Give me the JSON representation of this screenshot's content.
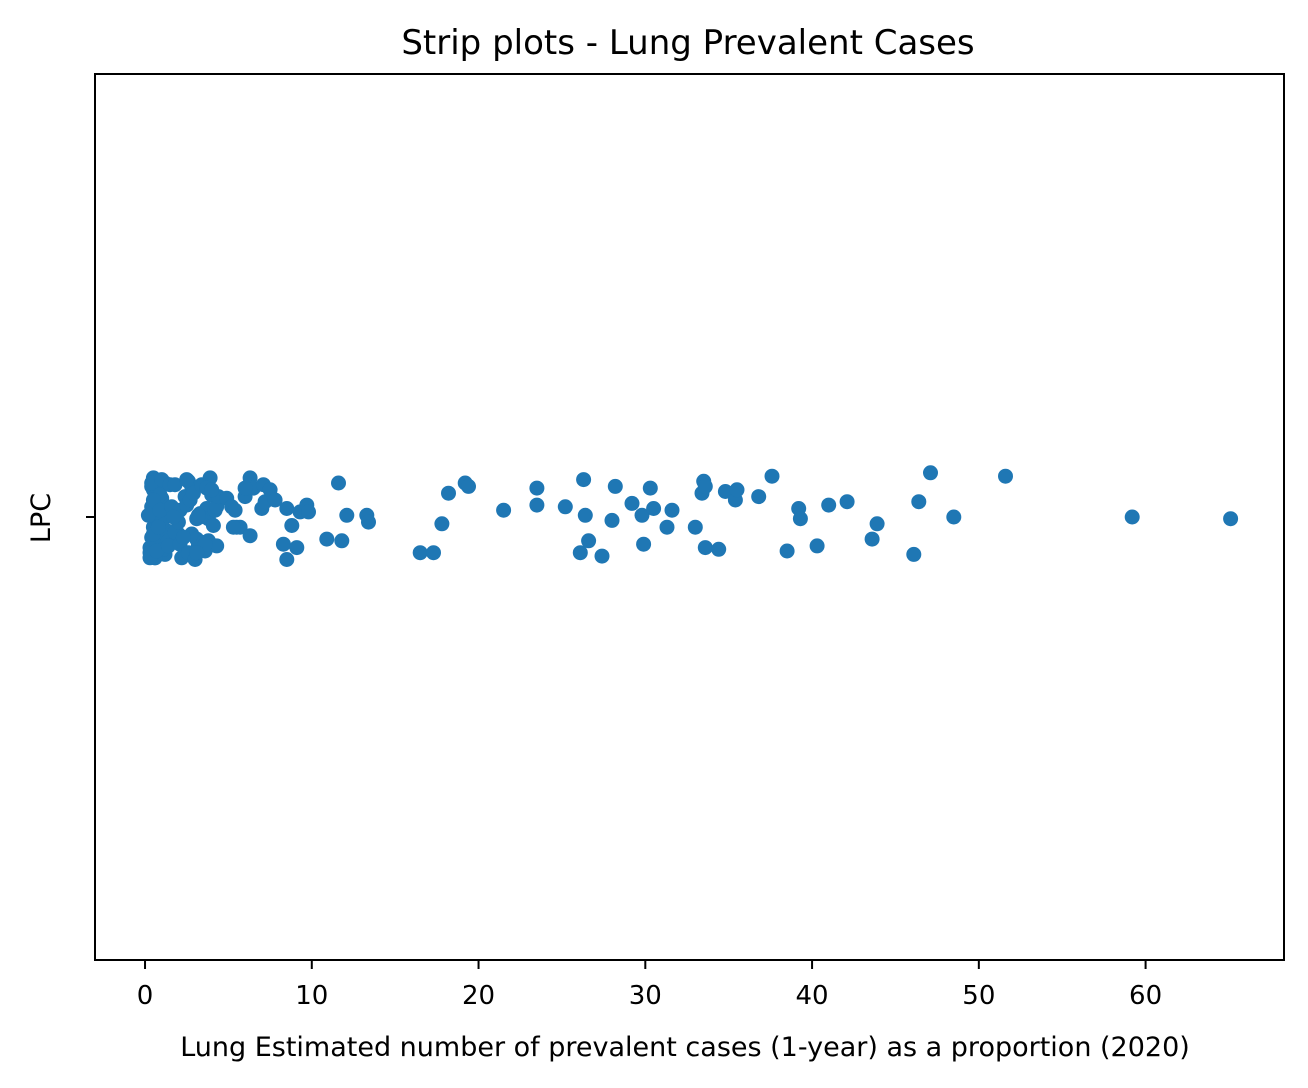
{
  "chart_data": {
    "type": "scatter",
    "subtype": "strip",
    "title": "Strip plots - Lung Prevalent Cases",
    "xlabel": "Lung Estimated number of prevalent cases (1-year) as a proportion (2020)",
    "ylabel": "LPC",
    "categories": [
      "LPC"
    ],
    "xlim": [
      -3,
      68.3
    ],
    "xticks": [
      0,
      10,
      20,
      30,
      40,
      50,
      60
    ],
    "xtick_labels": [
      "0",
      "10",
      "20",
      "30",
      "40",
      "50",
      "60"
    ],
    "grid": false,
    "legend": "none",
    "point_color": "#1f77b4",
    "series": [
      {
        "x": [
          0.3,
          0.4,
          0.5,
          0.6,
          0.6,
          0.7,
          0.8,
          0.9,
          1.0,
          1.1,
          1.2,
          1.2,
          1.3,
          0.4,
          0.5,
          0.6,
          0.7,
          0.9,
          1.0,
          1.2,
          0.3,
          0.5,
          0.6,
          0.7,
          0.8,
          1.0,
          1.1,
          0.4,
          0.5,
          0.7,
          0.9,
          0.4,
          0.6,
          1.0,
          1.4,
          1.5,
          0.2,
          0.3,
          0.5,
          0.7,
          0.8,
          0.9,
          1.6,
          1.8,
          2.0,
          2.1,
          2.2,
          2.4,
          2.5,
          2.6,
          2.7,
          2.8,
          2.9,
          3.1,
          3.2,
          3.3,
          3.4,
          3.5,
          3.6,
          3.7,
          3.8,
          3.9,
          4.0,
          4.1,
          4.2,
          4.3,
          4.4,
          1.4,
          1.8,
          2.1,
          2.4,
          2.8,
          3.1,
          3.3,
          3.5,
          3.7,
          2.0,
          2.6,
          3.2,
          3.8,
          4.3,
          1.7,
          2.3,
          3.0,
          3.6,
          4.0,
          2.5,
          3.1,
          4.9,
          5.2,
          5.4,
          5.5,
          5.7,
          6.0,
          6.1,
          6.3,
          6.3,
          6.5,
          7.0,
          7.1,
          7.2,
          7.5,
          7.8,
          8.3,
          8.5,
          8.5,
          8.8,
          9.1,
          9.3,
          9.7,
          9.8,
          5.3,
          6.0,
          10.9,
          11.6,
          11.8,
          12.1,
          13.3,
          13.4,
          16.5,
          17.3,
          17.8,
          18.2,
          19.2,
          19.4,
          21.5,
          23.5,
          23.5,
          25.2,
          26.1,
          26.3,
          26.4,
          26.6,
          27.4,
          28.0,
          28.2,
          29.2,
          29.8,
          29.9,
          30.3,
          30.5,
          31.3,
          31.6,
          33.0,
          33.4,
          33.5,
          33.6,
          33.6,
          34.4,
          34.8,
          35.4,
          35.5,
          36.8,
          37.6,
          38.5,
          39.2,
          39.3,
          40.3,
          41.0,
          42.1,
          43.6,
          43.9,
          46.1,
          46.4,
          47.1,
          48.5,
          51.6,
          59.2,
          65.1
        ],
        "jitter": [
          -0.18,
          0.18,
          -0.06,
          0.07,
          -0.24,
          0.14,
          0.21,
          -0.13,
          0.11,
          0.05,
          0.2,
          -0.22,
          -0.08,
          -0.12,
          0.16,
          0.12,
          -0.01,
          0.0,
          0.09,
          0.02,
          -0.21,
          0.23,
          0.08,
          -0.17,
          0.15,
          -0.03,
          -0.19,
          0.2,
          -0.1,
          0.03,
          0.13,
          0.06,
          -0.24,
          0.22,
          -0.14,
          0.19,
          0.01,
          -0.24,
          0.1,
          -0.2,
          -0.06,
          0.04,
          0.06,
          0.19,
          -0.1,
          0.04,
          -0.24,
          0.12,
          0.07,
          0.21,
          0.1,
          0.18,
          0.14,
          -0.01,
          -0.17,
          0.02,
          0.19,
          -0.16,
          -0.2,
          0.05,
          -0.01,
          0.23,
          0.13,
          -0.05,
          0.04,
          0.06,
          0.12,
          -0.17,
          -0.09,
          -0.16,
          -0.22,
          -0.1,
          -0.13,
          0.0,
          -0.15,
          0.17,
          -0.03,
          -0.21,
          0.01,
          -0.14,
          -0.17,
          0.0,
          -0.12,
          -0.25,
          -0.16,
          0.16,
          0.22,
          -0.21,
          0.11,
          0.06,
          0.04,
          -0.06,
          -0.06,
          0.12,
          0.17,
          -0.11,
          0.23,
          0.17,
          0.05,
          0.19,
          0.09,
          0.16,
          0.1,
          -0.16,
          0.05,
          -0.25,
          -0.05,
          -0.18,
          0.03,
          0.07,
          0.03,
          -0.06,
          0.17,
          -0.13,
          0.2,
          -0.14,
          0.01,
          0.01,
          -0.03,
          -0.21,
          -0.21,
          -0.04,
          0.14,
          0.2,
          0.18,
          0.04,
          0.17,
          0.07,
          0.06,
          -0.21,
          0.22,
          0.01,
          -0.14,
          -0.23,
          -0.02,
          0.18,
          0.08,
          0.01,
          -0.16,
          0.17,
          0.05,
          -0.06,
          0.04,
          -0.06,
          0.14,
          0.21,
          0.18,
          -0.18,
          -0.19,
          0.15,
          0.1,
          0.16,
          0.12,
          0.24,
          -0.2,
          0.05,
          -0.01,
          -0.17,
          0.07,
          0.09,
          -0.13,
          -0.04,
          -0.22,
          0.09,
          0.26,
          0.0,
          0.24,
          0.0,
          -0.01
        ]
      }
    ]
  }
}
